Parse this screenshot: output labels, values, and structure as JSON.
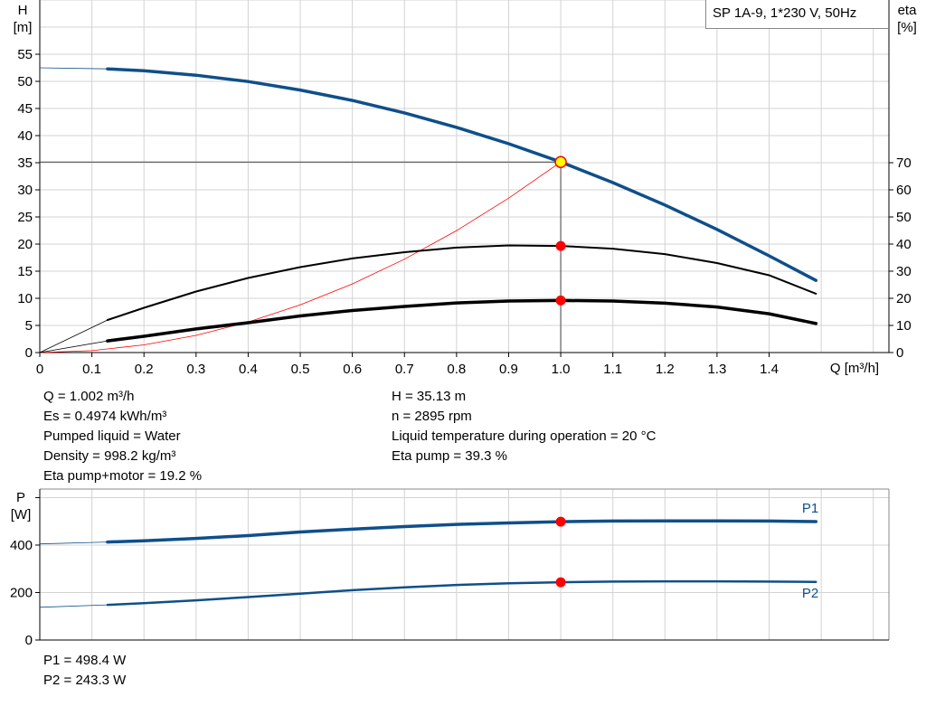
{
  "title_box": "SP 1A-9, 1*230 V, 50Hz",
  "colors": {
    "head": "#0f4f8a",
    "power": "#0f4f8a",
    "eta": "#000000",
    "system": "#ff0000",
    "marker": "#ff0000",
    "op_point_fill": "#ffff00",
    "grid": "#d3d3d3"
  },
  "info_left": [
    "Q = 1.002 m³/h",
    "Es = 0.4974 kWh/m³",
    "Pumped liquid = Water",
    "Density = 998.2 kg/m³",
    "Eta pump+motor = 19.2 %"
  ],
  "info_right": [
    "H = 35.13 m",
    "n = 2895 rpm",
    "Liquid temperature during operation = 20 °C",
    "Eta pump = 39.3 %"
  ],
  "power_info": [
    "P1 = 498.4 W",
    "P2 = 243.3 W"
  ],
  "chart_data": [
    {
      "type": "line",
      "xlabel": "Q [m³/h]",
      "ylabel": "H\n[m]",
      "ylabel_lines": [
        "H",
        "[m]"
      ],
      "y2label_lines": [
        "eta",
        "[%]"
      ],
      "xlim": [
        0,
        1.63
      ],
      "ylim": [
        0,
        65
      ],
      "y2lim": [
        0,
        130
      ],
      "xticks": [
        "0",
        "0.1",
        "0.2",
        "0.3",
        "0.4",
        "0.5",
        "0.6",
        "0.7",
        "0.8",
        "0.9",
        "1.0",
        "1.1",
        "1.2",
        "1.3",
        "1.4"
      ],
      "yticks": [
        "0",
        "5",
        "10",
        "15",
        "20",
        "25",
        "30",
        "35",
        "40",
        "45",
        "50",
        "55"
      ],
      "y2ticks": [
        "0",
        "10",
        "20",
        "30",
        "40",
        "50",
        "60",
        "70"
      ],
      "grid": true,
      "operating_point": {
        "Q": 1.0,
        "H": 35.13,
        "eta_pump": 39.3,
        "eta_pump_motor": 19.2
      },
      "series": [
        {
          "id": "head",
          "axis": "left",
          "x": [
            0,
            0.13,
            0.2,
            0.3,
            0.4,
            0.5,
            0.6,
            0.7,
            0.8,
            0.9,
            1.0,
            1.1,
            1.2,
            1.3,
            1.4,
            1.49
          ],
          "y": [
            52.5,
            52.3,
            51.96,
            51.14,
            49.96,
            48.4,
            46.48,
            44.18,
            41.52,
            38.5,
            35.13,
            31.34,
            27.2,
            22.7,
            17.84,
            13.3
          ]
        },
        {
          "id": "eta-pump",
          "axis": "right",
          "x": [
            0,
            0.13,
            0.2,
            0.3,
            0.4,
            0.5,
            0.6,
            0.7,
            0.8,
            0.9,
            1.0,
            1.1,
            1.2,
            1.3,
            1.4,
            1.49
          ],
          "y": [
            0,
            12,
            16.5,
            22.5,
            27.5,
            31.5,
            34.7,
            37,
            38.7,
            39.5,
            39.3,
            38.3,
            36.3,
            33,
            28.5,
            21.7
          ]
        },
        {
          "id": "eta-pump-motor",
          "axis": "right",
          "x": [
            0,
            0.13,
            0.2,
            0.3,
            0.4,
            0.5,
            0.6,
            0.7,
            0.8,
            0.9,
            1.0,
            1.1,
            1.2,
            1.3,
            1.4,
            1.49
          ],
          "y": [
            0,
            4.3,
            6,
            8.7,
            11,
            13.5,
            15.5,
            17,
            18.3,
            19,
            19.2,
            19,
            18.2,
            16.8,
            14.3,
            10.7
          ]
        },
        {
          "id": "system-curve",
          "axis": "left",
          "x": [
            0,
            0.1,
            0.2,
            0.3,
            0.4,
            0.5,
            0.6,
            0.7,
            0.8,
            0.9,
            1.0
          ],
          "y": [
            0,
            0.35,
            1.41,
            3.16,
            5.62,
            8.78,
            12.65,
            17.21,
            22.48,
            28.46,
            35.13
          ]
        }
      ]
    },
    {
      "type": "line",
      "ylabel_lines": [
        "P",
        "[W]"
      ],
      "xlim": [
        0,
        1.63
      ],
      "ylim": [
        0,
        636
      ],
      "yticks": [
        "0",
        "200",
        "400"
      ],
      "grid": true,
      "operating_point": {
        "Q": 1.0,
        "P1": 498.4,
        "P2": 243.3
      },
      "series": [
        {
          "id": "p1",
          "name": "P1",
          "x": [
            0,
            0.13,
            0.2,
            0.3,
            0.4,
            0.5,
            0.6,
            0.7,
            0.8,
            0.9,
            1.0,
            1.1,
            1.2,
            1.3,
            1.4,
            1.49
          ],
          "y": [
            405,
            413,
            418,
            428,
            440,
            455,
            467,
            478,
            487,
            493,
            498.4,
            501,
            502,
            502,
            501,
            499
          ]
        },
        {
          "id": "p2",
          "name": "P2",
          "x": [
            0,
            0.13,
            0.2,
            0.3,
            0.4,
            0.5,
            0.6,
            0.7,
            0.8,
            0.9,
            1.0,
            1.1,
            1.2,
            1.3,
            1.4,
            1.49
          ],
          "y": [
            138,
            148,
            155,
            167,
            181,
            195,
            210,
            222,
            232,
            239,
            243.3,
            246,
            247,
            247,
            246,
            245
          ]
        }
      ]
    }
  ]
}
